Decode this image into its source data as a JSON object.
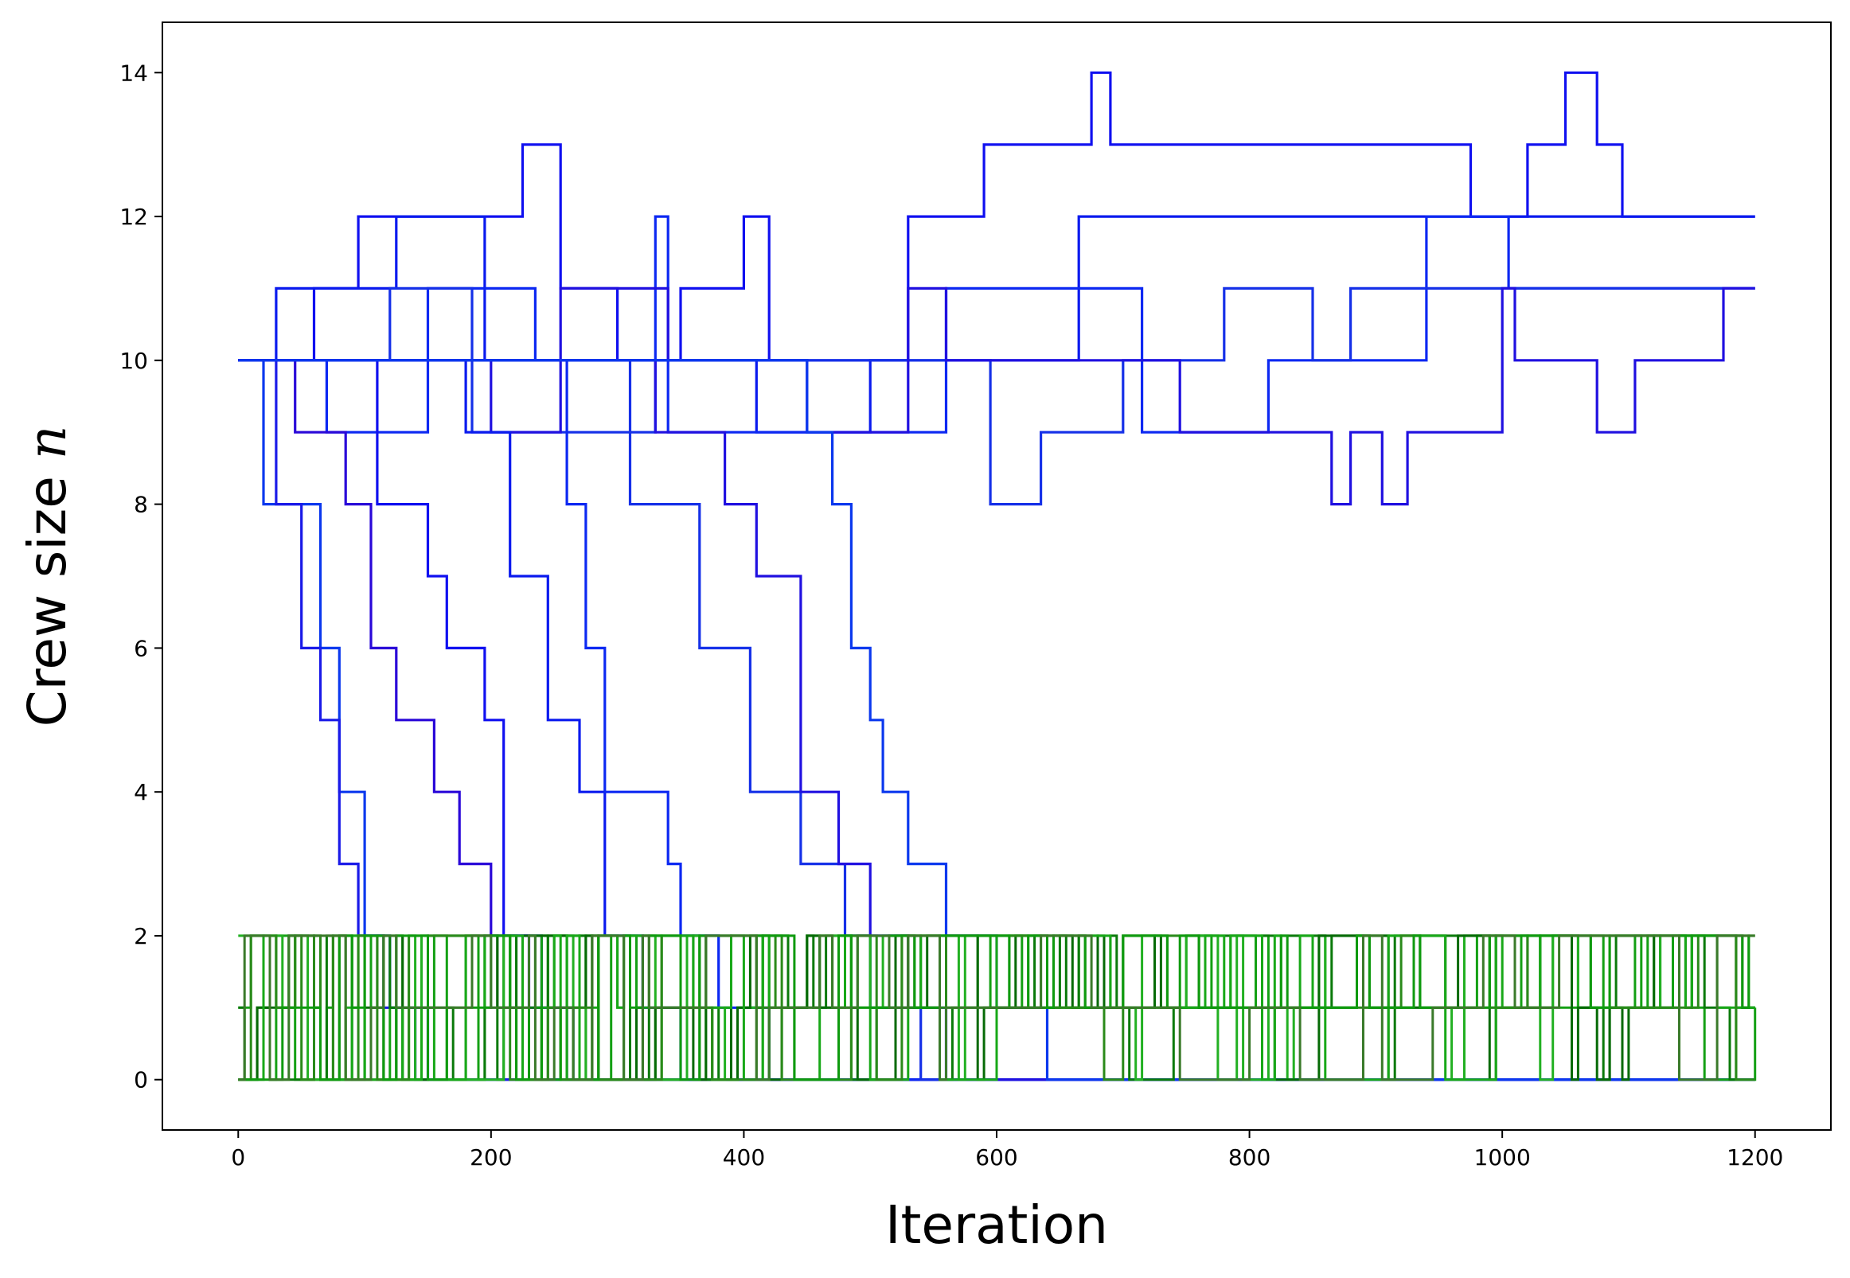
{
  "chart_data": {
    "type": "line",
    "title": "",
    "xlabel": "Iteration",
    "ylabel": {
      "text": "Crew size ",
      "variable": "n"
    },
    "xlim": [
      -60,
      1260
    ],
    "ylim": [
      -0.7,
      14.7
    ],
    "xticks": [
      0,
      200,
      400,
      600,
      800,
      1000,
      1200
    ],
    "yticks": [
      0,
      2,
      4,
      6,
      8,
      10,
      12,
      14
    ],
    "grid": false,
    "legend": "none",
    "x_step": 5,
    "colors": {
      "blue": [
        "#1010f0",
        "#0a1aee",
        "#0c28f2",
        "#1530e8",
        "#2010e0",
        "#0b38ee",
        "#1a1ae8",
        "#2a08d8"
      ],
      "green": [
        "#14a014",
        "#0a7a0a",
        "#22b022",
        "#066a06",
        "#18a818",
        "#2a8a1a",
        "#0f9a0f",
        "#3a7a2a"
      ]
    },
    "blue_series": [
      {
        "name": "",
        "points": [
          [
            0,
            10
          ],
          [
            60,
            10
          ],
          [
            60,
            11
          ],
          [
            95,
            11
          ],
          [
            95,
            12
          ],
          [
            225,
            12
          ],
          [
            225,
            13
          ],
          [
            255,
            13
          ],
          [
            255,
            11
          ],
          [
            300,
            11
          ],
          [
            300,
            10
          ],
          [
            350,
            10
          ],
          [
            350,
            11
          ],
          [
            400,
            11
          ],
          [
            400,
            12
          ],
          [
            420,
            12
          ],
          [
            420,
            10
          ],
          [
            530,
            10
          ],
          [
            530,
            12
          ],
          [
            590,
            12
          ],
          [
            590,
            13
          ],
          [
            675,
            13
          ],
          [
            675,
            14
          ],
          [
            690,
            14
          ],
          [
            690,
            13
          ],
          [
            975,
            13
          ],
          [
            975,
            12
          ],
          [
            1020,
            12
          ],
          [
            1020,
            13
          ],
          [
            1050,
            13
          ],
          [
            1050,
            14
          ],
          [
            1075,
            14
          ],
          [
            1075,
            13
          ],
          [
            1095,
            13
          ],
          [
            1095,
            12
          ],
          [
            1200,
            12
          ]
        ]
      },
      {
        "name": "",
        "points": [
          [
            0,
            10
          ],
          [
            30,
            10
          ],
          [
            30,
            11
          ],
          [
            125,
            11
          ],
          [
            125,
            12
          ],
          [
            195,
            12
          ],
          [
            195,
            10
          ],
          [
            410,
            10
          ],
          [
            410,
            9
          ],
          [
            500,
            9
          ],
          [
            500,
            10
          ],
          [
            665,
            10
          ],
          [
            665,
            12
          ],
          [
            1200,
            12
          ]
        ]
      },
      {
        "name": "",
        "points": [
          [
            0,
            10
          ],
          [
            70,
            10
          ],
          [
            70,
            9
          ],
          [
            150,
            9
          ],
          [
            150,
            11
          ],
          [
            235,
            11
          ],
          [
            235,
            10
          ],
          [
            330,
            10
          ],
          [
            330,
            12
          ],
          [
            340,
            12
          ],
          [
            340,
            9
          ],
          [
            560,
            9
          ],
          [
            560,
            11
          ],
          [
            715,
            11
          ],
          [
            715,
            9
          ],
          [
            815,
            9
          ],
          [
            815,
            10
          ],
          [
            940,
            10
          ],
          [
            940,
            12
          ],
          [
            1005,
            12
          ],
          [
            1005,
            11
          ],
          [
            1200,
            11
          ]
        ]
      },
      {
        "name": "",
        "points": [
          [
            0,
            10
          ],
          [
            120,
            10
          ],
          [
            120,
            11
          ],
          [
            185,
            11
          ],
          [
            185,
            9
          ],
          [
            330,
            9
          ],
          [
            330,
            10
          ],
          [
            595,
            10
          ],
          [
            595,
            8
          ],
          [
            635,
            8
          ],
          [
            635,
            9
          ],
          [
            700,
            9
          ],
          [
            700,
            10
          ],
          [
            780,
            10
          ],
          [
            780,
            11
          ],
          [
            850,
            11
          ],
          [
            850,
            10
          ],
          [
            880,
            10
          ],
          [
            880,
            11
          ],
          [
            1045,
            11
          ],
          [
            1045,
            11
          ],
          [
            1200,
            11
          ]
        ]
      },
      {
        "name": "",
        "points": [
          [
            0,
            10
          ],
          [
            200,
            10
          ],
          [
            200,
            9
          ],
          [
            255,
            9
          ],
          [
            255,
            11
          ],
          [
            340,
            11
          ],
          [
            340,
            10
          ],
          [
            450,
            10
          ],
          [
            450,
            9
          ],
          [
            530,
            9
          ],
          [
            530,
            11
          ],
          [
            560,
            11
          ],
          [
            560,
            10
          ],
          [
            745,
            10
          ],
          [
            745,
            9
          ],
          [
            865,
            9
          ],
          [
            865,
            8
          ],
          [
            880,
            8
          ],
          [
            880,
            9
          ],
          [
            905,
            9
          ],
          [
            905,
            8
          ],
          [
            925,
            8
          ],
          [
            925,
            9
          ],
          [
            1000,
            9
          ],
          [
            1000,
            11
          ],
          [
            1010,
            11
          ],
          [
            1010,
            10
          ],
          [
            1075,
            10
          ],
          [
            1075,
            9
          ],
          [
            1105,
            9
          ],
          [
            1105,
            10
          ],
          [
            1175,
            10
          ],
          [
            1175,
            11
          ],
          [
            1200,
            11
          ]
        ]
      },
      {
        "name": "",
        "points": [
          [
            0,
            10
          ],
          [
            20,
            10
          ],
          [
            20,
            8
          ],
          [
            65,
            8
          ],
          [
            65,
            6
          ],
          [
            80,
            6
          ],
          [
            80,
            4
          ],
          [
            100,
            4
          ],
          [
            100,
            2
          ],
          [
            120,
            2
          ],
          [
            120,
            1
          ],
          [
            150,
            1
          ],
          [
            150,
            0
          ],
          [
            1200,
            0
          ]
        ]
      },
      {
        "name": "",
        "points": [
          [
            0,
            10
          ],
          [
            30,
            10
          ],
          [
            30,
            8
          ],
          [
            50,
            8
          ],
          [
            50,
            6
          ],
          [
            65,
            6
          ],
          [
            65,
            5
          ],
          [
            80,
            5
          ],
          [
            80,
            3
          ],
          [
            95,
            3
          ],
          [
            95,
            2
          ],
          [
            115,
            2
          ],
          [
            115,
            1
          ],
          [
            140,
            1
          ],
          [
            140,
            0
          ],
          [
            1200,
            0
          ]
        ]
      },
      {
        "name": "",
        "points": [
          [
            0,
            10
          ],
          [
            45,
            10
          ],
          [
            45,
            9
          ],
          [
            85,
            9
          ],
          [
            85,
            8
          ],
          [
            105,
            8
          ],
          [
            105,
            6
          ],
          [
            125,
            6
          ],
          [
            125,
            5
          ],
          [
            155,
            5
          ],
          [
            155,
            4
          ],
          [
            175,
            4
          ],
          [
            175,
            3
          ],
          [
            200,
            3
          ],
          [
            200,
            2
          ],
          [
            230,
            2
          ],
          [
            230,
            1
          ],
          [
            260,
            1
          ],
          [
            260,
            0
          ],
          [
            1200,
            0
          ]
        ]
      },
      {
        "name": "",
        "points": [
          [
            0,
            10
          ],
          [
            110,
            10
          ],
          [
            110,
            8
          ],
          [
            150,
            8
          ],
          [
            150,
            7
          ],
          [
            165,
            7
          ],
          [
            165,
            6
          ],
          [
            195,
            6
          ],
          [
            195,
            5
          ],
          [
            210,
            5
          ],
          [
            210,
            2
          ],
          [
            240,
            2
          ],
          [
            240,
            1
          ],
          [
            265,
            1
          ],
          [
            265,
            0
          ],
          [
            1200,
            0
          ]
        ]
      },
      {
        "name": "",
        "points": [
          [
            0,
            10
          ],
          [
            180,
            10
          ],
          [
            180,
            9
          ],
          [
            215,
            9
          ],
          [
            215,
            7
          ],
          [
            245,
            7
          ],
          [
            245,
            5
          ],
          [
            270,
            5
          ],
          [
            270,
            4
          ],
          [
            290,
            4
          ],
          [
            290,
            2
          ],
          [
            320,
            2
          ],
          [
            320,
            1
          ],
          [
            350,
            1
          ],
          [
            350,
            0
          ],
          [
            1200,
            0
          ]
        ]
      },
      {
        "name": "",
        "points": [
          [
            0,
            10
          ],
          [
            260,
            10
          ],
          [
            260,
            8
          ],
          [
            275,
            8
          ],
          [
            275,
            6
          ],
          [
            290,
            6
          ],
          [
            290,
            4
          ],
          [
            340,
            4
          ],
          [
            340,
            3
          ],
          [
            350,
            3
          ],
          [
            350,
            2
          ],
          [
            380,
            2
          ],
          [
            380,
            1
          ],
          [
            420,
            1
          ],
          [
            420,
            0
          ],
          [
            1200,
            0
          ]
        ]
      },
      {
        "name": "",
        "points": [
          [
            0,
            10
          ],
          [
            310,
            10
          ],
          [
            310,
            8
          ],
          [
            365,
            8
          ],
          [
            365,
            6
          ],
          [
            405,
            6
          ],
          [
            405,
            4
          ],
          [
            445,
            4
          ],
          [
            445,
            3
          ],
          [
            480,
            3
          ],
          [
            480,
            2
          ],
          [
            500,
            2
          ],
          [
            500,
            1
          ],
          [
            540,
            1
          ],
          [
            540,
            0
          ],
          [
            1200,
            0
          ]
        ]
      },
      {
        "name": "",
        "points": [
          [
            0,
            10
          ],
          [
            330,
            10
          ],
          [
            330,
            9
          ],
          [
            385,
            9
          ],
          [
            385,
            8
          ],
          [
            410,
            8
          ],
          [
            410,
            7
          ],
          [
            445,
            7
          ],
          [
            445,
            4
          ],
          [
            475,
            4
          ],
          [
            475,
            3
          ],
          [
            500,
            3
          ],
          [
            500,
            2
          ],
          [
            530,
            2
          ],
          [
            530,
            1
          ],
          [
            560,
            1
          ],
          [
            560,
            0
          ],
          [
            1200,
            0
          ]
        ]
      },
      {
        "name": "",
        "points": [
          [
            0,
            10
          ],
          [
            450,
            10
          ],
          [
            450,
            9
          ],
          [
            470,
            9
          ],
          [
            470,
            8
          ],
          [
            485,
            8
          ],
          [
            485,
            6
          ],
          [
            500,
            6
          ],
          [
            500,
            5
          ],
          [
            510,
            5
          ],
          [
            510,
            4
          ],
          [
            530,
            4
          ],
          [
            530,
            3
          ],
          [
            560,
            3
          ],
          [
            560,
            2
          ],
          [
            600,
            2
          ],
          [
            600,
            1
          ],
          [
            640,
            1
          ],
          [
            640,
            0
          ],
          [
            1200,
            0
          ]
        ]
      }
    ]
  }
}
